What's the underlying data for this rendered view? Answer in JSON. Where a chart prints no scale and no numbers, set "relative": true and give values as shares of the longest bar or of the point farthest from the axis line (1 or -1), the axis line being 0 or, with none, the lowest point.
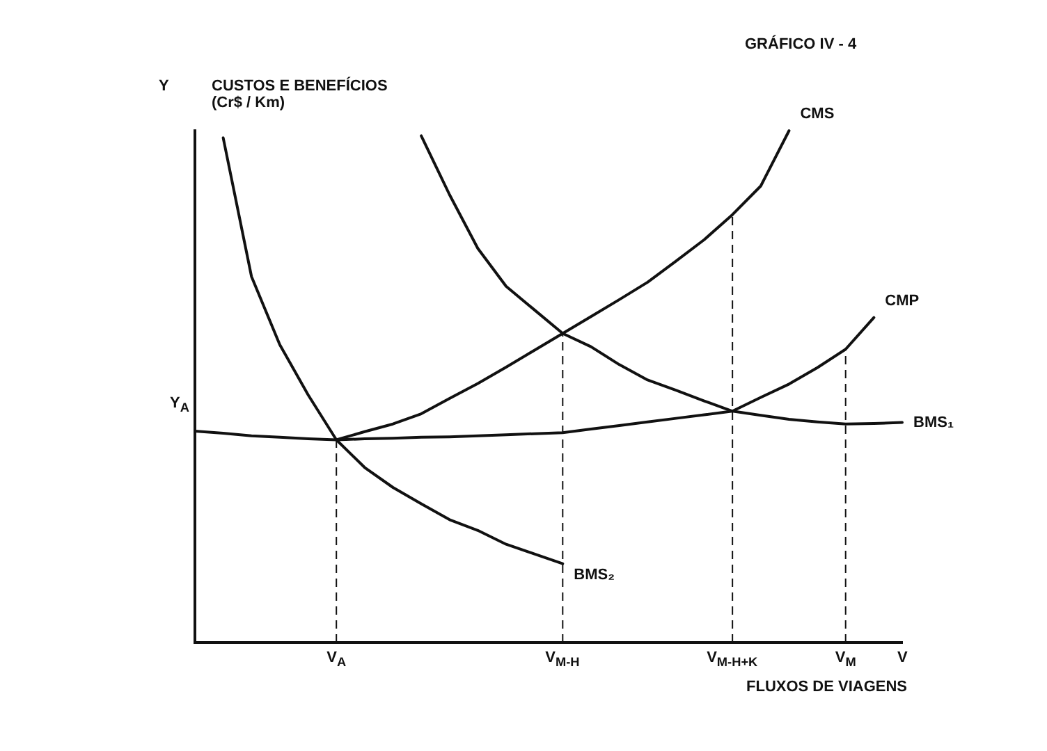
{
  "chart_data": {
    "type": "line",
    "relative": true,
    "title": "GRÁFICO IV - 4",
    "subtitle": "CUSTOS E BENEFÍCIOS (Cr$ / Km)",
    "ylabel": "Y",
    "xlabel": "FLUXOS DE VIAGENS",
    "categories": [
      null,
      null,
      null,
      null,
      null,
      "V$_{A}$",
      null,
      null,
      null,
      null,
      null,
      null,
      null,
      "V$_{M-H}$",
      null,
      null,
      null,
      null,
      null,
      "V$_{M-H+K}$",
      null,
      null,
      null,
      "V$_{M}$",
      null,
      "V"
    ],
    "annotations": [
      "Y$_{A}$"
    ],
    "ref_lines": [
      {
        "axis": "x",
        "value": "V$_{A}$",
        "line_style": "dashed"
      },
      {
        "axis": "x",
        "value": "V$_{M-H}$",
        "line_style": "dashed"
      },
      {
        "axis": "x",
        "value": "V$_{M-H+K}$",
        "line_style": "dashed"
      },
      {
        "axis": "x",
        "value": "V$_{M}$",
        "line_style": "dashed"
      }
    ],
    "grid": false,
    "legend": false,
    "marker": "none",
    "line_style": "solid",
    "series": [
      {
        "name": "CMS",
        "color": "#111111",
        "values": [
          null,
          null,
          null,
          null,
          null,
          0.396,
          0.412,
          0.427,
          0.447,
          0.477,
          0.506,
          0.538,
          0.571,
          0.604,
          0.637,
          0.67,
          0.704,
          0.745,
          0.787,
          0.836,
          0.892,
          1,
          null,
          null,
          null,
          null
        ]
      },
      {
        "name": "CMP",
        "color": "#111111",
        "values": [
          0.413,
          0.409,
          0.404,
          0.401,
          0.398,
          0.396,
          0.398,
          0.399,
          0.401,
          0.402,
          0.404,
          0.406,
          0.408,
          0.41,
          0.417,
          0.424,
          0.431,
          0.438,
          0.445,
          0.452,
          0.479,
          0.505,
          0.537,
          0.573,
          0.635,
          null
        ]
      },
      {
        "name": "BMS₁",
        "color": "#111111",
        "values": [
          null,
          null,
          null,
          null,
          null,
          null,
          null,
          null,
          0.99,
          0.875,
          0.77,
          0.696,
          0.65,
          0.604,
          0.578,
          0.543,
          0.513,
          0.493,
          0.472,
          0.452,
          0.444,
          0.436,
          0.431,
          0.427,
          0.428,
          0.43
        ]
      },
      {
        "name": "BMS₂",
        "color": "#111111",
        "values": [
          null,
          0.986,
          0.715,
          0.582,
          0.484,
          0.396,
          0.342,
          0.303,
          0.271,
          0.24,
          0.219,
          0.192,
          0.173,
          0.154,
          null,
          null,
          null,
          null,
          null,
          null,
          null,
          null,
          null,
          null,
          null,
          null
        ]
      }
    ]
  }
}
